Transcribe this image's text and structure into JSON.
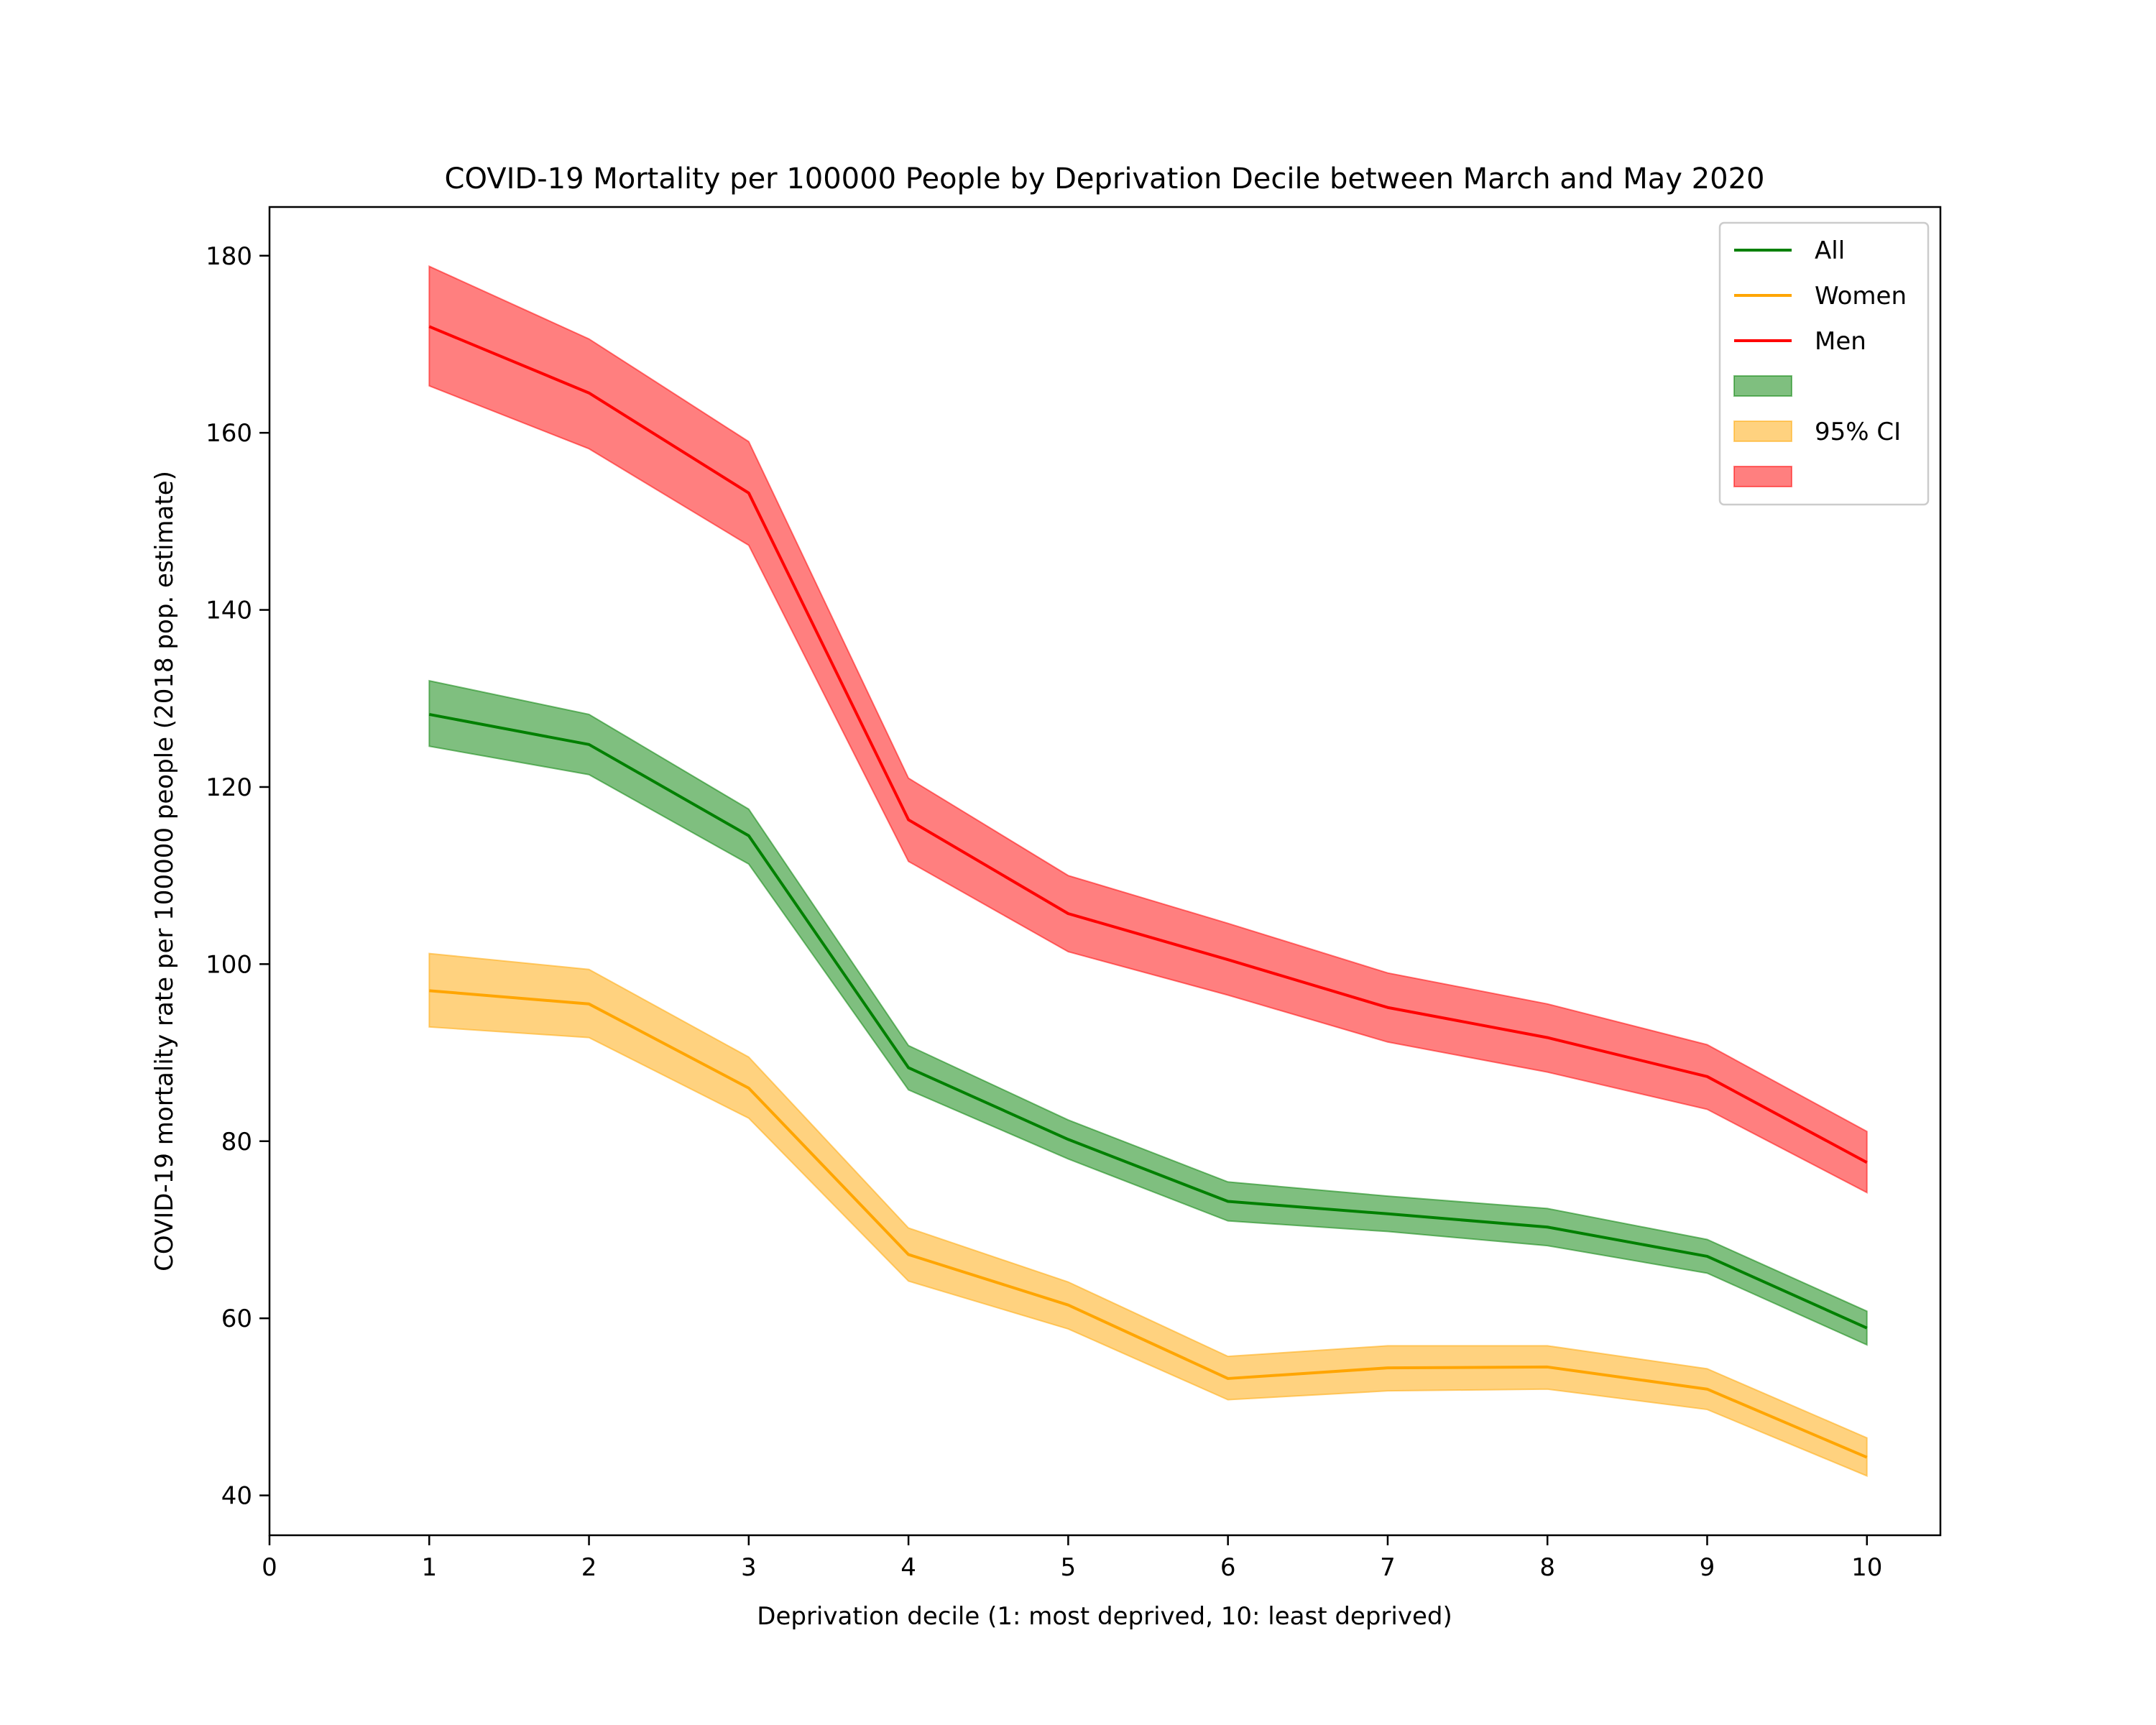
{
  "chart_data": {
    "type": "line",
    "title": "COVID-19 Mortality per 100000 People by Deprivation Decile between March and May 2020",
    "xlabel": "Deprivation decile (1: most deprived, 10: least deprived)",
    "ylabel": "COVID-19 mortality rate per 100000 people (2018 pop. estimate)",
    "xlim": [
      0,
      10.46
    ],
    "ylim": [
      35.5,
      185.5
    ],
    "xticks": [
      0,
      1,
      2,
      3,
      4,
      5,
      6,
      7,
      8,
      9,
      10
    ],
    "yticks": [
      40,
      60,
      80,
      100,
      120,
      140,
      160,
      180
    ],
    "grid": false,
    "legend_position": "top-right",
    "x": [
      1,
      2,
      3,
      4,
      5,
      6,
      7,
      8,
      9,
      10
    ],
    "series": [
      {
        "name": "All",
        "color": "#008000",
        "values": [
          128.2,
          124.8,
          114.5,
          88.3,
          80.2,
          73.2,
          71.8,
          70.3,
          67.0,
          58.9
        ],
        "ci_lower": [
          124.6,
          121.4,
          111.3,
          85.8,
          78.0,
          71.0,
          69.8,
          68.2,
          65.1,
          57.0
        ],
        "ci_upper": [
          132.0,
          128.2,
          117.5,
          90.8,
          82.4,
          75.4,
          73.8,
          72.4,
          68.9,
          60.8
        ]
      },
      {
        "name": "Women",
        "color": "#FFA500",
        "values": [
          97.0,
          95.5,
          86.0,
          67.2,
          61.5,
          53.2,
          54.4,
          54.5,
          52.0,
          44.3
        ],
        "ci_lower": [
          92.9,
          91.7,
          82.6,
          64.2,
          58.8,
          50.8,
          51.8,
          52.0,
          49.7,
          42.2
        ],
        "ci_upper": [
          101.2,
          99.4,
          89.5,
          70.2,
          64.1,
          55.7,
          56.9,
          56.9,
          54.3,
          46.5
        ]
      },
      {
        "name": "Men",
        "color": "#FF0000",
        "values": [
          172.0,
          164.5,
          153.2,
          116.3,
          105.7,
          100.5,
          95.1,
          91.7,
          87.3,
          77.6
        ],
        "ci_lower": [
          165.3,
          158.2,
          147.3,
          111.6,
          101.4,
          96.5,
          91.2,
          87.8,
          83.6,
          74.2
        ],
        "ci_upper": [
          178.8,
          170.6,
          159.0,
          121.0,
          110.0,
          104.6,
          99.0,
          95.5,
          90.9,
          81.1
        ]
      }
    ],
    "ci_label": "95% CI",
    "band_opacity": 0.5
  }
}
